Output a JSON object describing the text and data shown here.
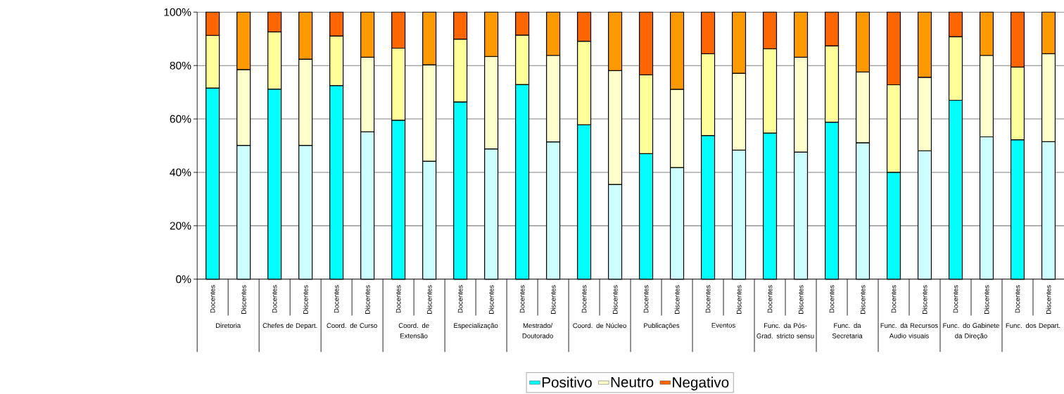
{
  "chart_data": {
    "type": "bar",
    "stacked": true,
    "categories": [
      "Docentes",
      "Discentes",
      "Docentes",
      "Discentes",
      "Docentes",
      "Discentes",
      "Docentes",
      "Discentes",
      "Docentes",
      "Discentes",
      "Docentes",
      "Discentes",
      "Docentes",
      "Discentes",
      "Docentes",
      "Discentes",
      "Docentes",
      "Discentes",
      "Docentes",
      "Discentes",
      "Docentes",
      "Discentes",
      "Docentes",
      "Discentes",
      "Docentes",
      "Discentes",
      "Docentes",
      "Discentes"
    ],
    "series": [
      {
        "name": "Positivo",
        "color": "#00ffff",
        "colors": [
          "#00ffff",
          "#ccffff",
          "#00ffff",
          "#ccffff",
          "#00ffff",
          "#ccffff",
          "#00ffff",
          "#ccffff",
          "#00ffff",
          "#ccffff",
          "#00ffff",
          "#ccffff",
          "#00ffff",
          "#ccffff",
          "#00ffff",
          "#ccffff",
          "#00ffff",
          "#ccffff",
          "#00ffff",
          "#ccffff",
          "#00ffff",
          "#ccffff",
          "#00ffff",
          "#ccffff",
          "#00ffff",
          "#ccffff",
          "#00ffff",
          "#ccffff"
        ],
        "values": [
          71.6,
          50.1,
          71.2,
          50.1,
          72.5,
          55.2,
          59.5,
          44.2,
          66.4,
          48.8,
          72.9,
          51.4,
          57.8,
          35.5,
          47.0,
          41.8,
          53.8,
          48.3,
          54.7,
          47.6,
          58.8,
          51.1,
          40.0,
          48.1,
          67.0,
          53.3,
          52.2,
          51.5
        ]
      },
      {
        "name": "Neutro",
        "color": "#ffffcc",
        "colors": [
          "#ffff99",
          "#ffffcc",
          "#ffff99",
          "#ffffcc",
          "#ffff99",
          "#ffffcc",
          "#ffff99",
          "#ffffcc",
          "#ffff99",
          "#ffffcc",
          "#ffff99",
          "#ffffcc",
          "#ffff99",
          "#ffffcc",
          "#ffff99",
          "#ffffcc",
          "#ffff99",
          "#ffffcc",
          "#ffff99",
          "#ffffcc",
          "#ffff99",
          "#ffffcc",
          "#ffff99",
          "#ffffcc",
          "#ffff99",
          "#ffffcc",
          "#ffff99",
          "#ffffcc"
        ],
        "values": [
          19.7,
          28.4,
          21.4,
          32.3,
          18.6,
          27.9,
          27.0,
          36.1,
          23.5,
          34.6,
          18.5,
          32.4,
          31.3,
          42.6,
          29.5,
          29.3,
          30.6,
          28.8,
          31.6,
          35.5,
          28.6,
          26.5,
          32.8,
          27.5,
          23.8,
          30.5,
          27.2,
          32.9
        ]
      },
      {
        "name": "Negativo",
        "color": "#ff6600",
        "colors": [
          "#ff6600",
          "#ff9900",
          "#ff6600",
          "#ff9900",
          "#ff6600",
          "#ff9900",
          "#ff6600",
          "#ff9900",
          "#ff6600",
          "#ff9900",
          "#ff6600",
          "#ff9900",
          "#ff6600",
          "#ff9900",
          "#ff6600",
          "#ff9900",
          "#ff6600",
          "#ff9900",
          "#ff6600",
          "#ff9900",
          "#ff6600",
          "#ff9900",
          "#ff6600",
          "#ff9900",
          "#ff6600",
          "#ff9900",
          "#ff6600",
          "#ff9900"
        ],
        "values": [
          8.7,
          21.5,
          7.4,
          17.6,
          8.9,
          16.9,
          13.5,
          19.7,
          10.1,
          16.6,
          8.6,
          16.2,
          10.9,
          21.9,
          23.5,
          28.9,
          15.6,
          22.9,
          13.7,
          16.9,
          12.6,
          22.4,
          27.2,
          24.4,
          9.2,
          16.2,
          20.6,
          15.6
        ]
      }
    ],
    "annotations": [
      "Diretoria",
      "Chefes de Depart.",
      "Coord. de Curso",
      "Coord. de Extensão",
      "Especialização",
      "Mestrado/ Doutorado",
      "Coord. de Núcleo",
      "Publicações",
      "Eventos",
      "Func. da Pós-Grad. stricto sensu",
      "Func. da Secretaria",
      "Func. da Recursos Audio visuais",
      "Func. do Gabinete da Direção",
      "Func. dos Depart."
    ],
    "ylim": [
      0,
      100
    ],
    "yticks": [
      {
        "value": 0,
        "label": "0%"
      },
      {
        "value": 20,
        "label": "20%"
      },
      {
        "value": 40,
        "label": "40%"
      },
      {
        "value": 60,
        "label": "60%"
      },
      {
        "value": 80,
        "label": "80%"
      },
      {
        "value": 100,
        "label": "100%"
      }
    ],
    "grid": "y",
    "legend": "bottom"
  }
}
